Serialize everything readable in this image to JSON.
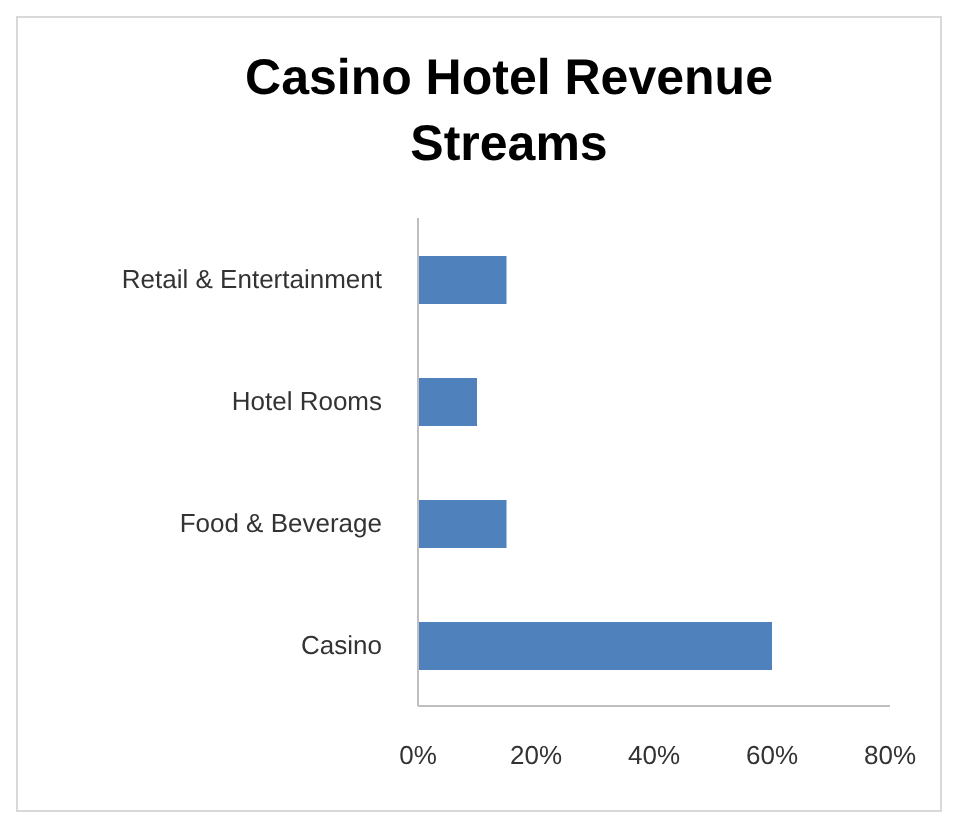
{
  "chart_data": {
    "type": "bar",
    "orientation": "horizontal",
    "title": "Casino Hotel Revenue Streams",
    "categories": [
      "Retail & Entertainment",
      "Hotel Rooms",
      "Food & Beverage",
      "Casino"
    ],
    "values": [
      15,
      10,
      15,
      60
    ],
    "color": "#4f81bd",
    "xlim": [
      0,
      80
    ],
    "xticks": [
      {
        "value": 0,
        "label": "0%"
      },
      {
        "value": 20,
        "label": "20%"
      },
      {
        "value": 40,
        "label": "40%"
      },
      {
        "value": 60,
        "label": "60%"
      },
      {
        "value": 80,
        "label": "80%"
      }
    ],
    "grid": false,
    "legend": false
  }
}
